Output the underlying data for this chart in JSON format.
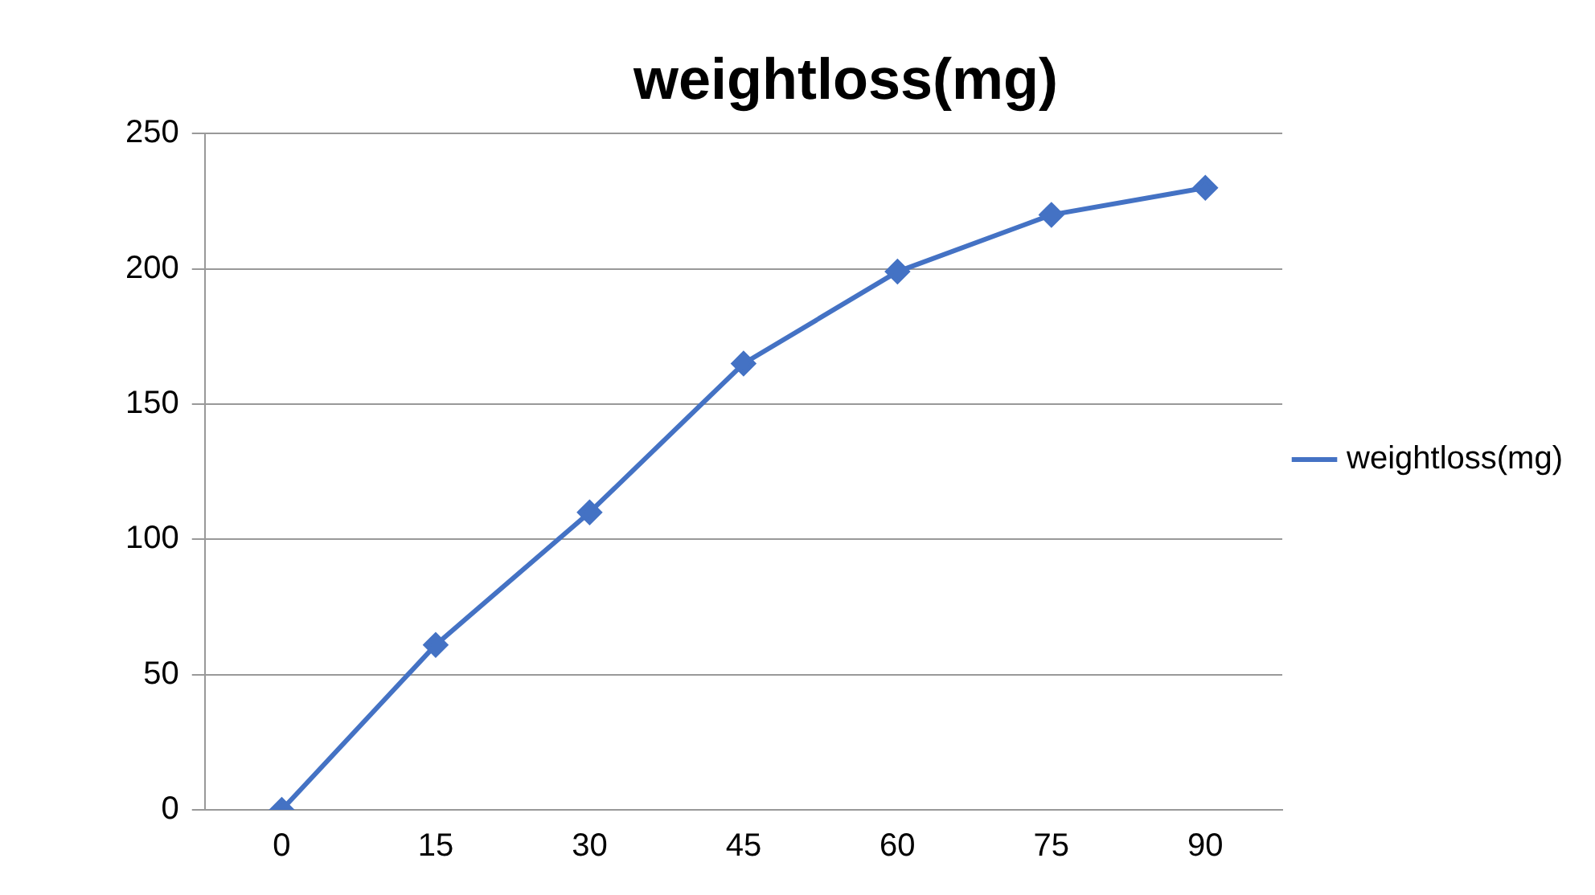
{
  "chart_data": {
    "type": "line",
    "title": "weightloss(mg)",
    "categories": [
      "0",
      "15",
      "30",
      "45",
      "60",
      "75",
      "90"
    ],
    "series": [
      {
        "name": "weightloss(mg)",
        "color": "#4472c4",
        "values": [
          0,
          61,
          110,
          165,
          199,
          220,
          230
        ]
      }
    ],
    "ylim": [
      0,
      250
    ],
    "yticks": [
      0,
      50,
      100,
      150,
      200,
      250
    ],
    "grid": "y",
    "legend": "right",
    "marker": "diamond",
    "line_style": "solid"
  }
}
